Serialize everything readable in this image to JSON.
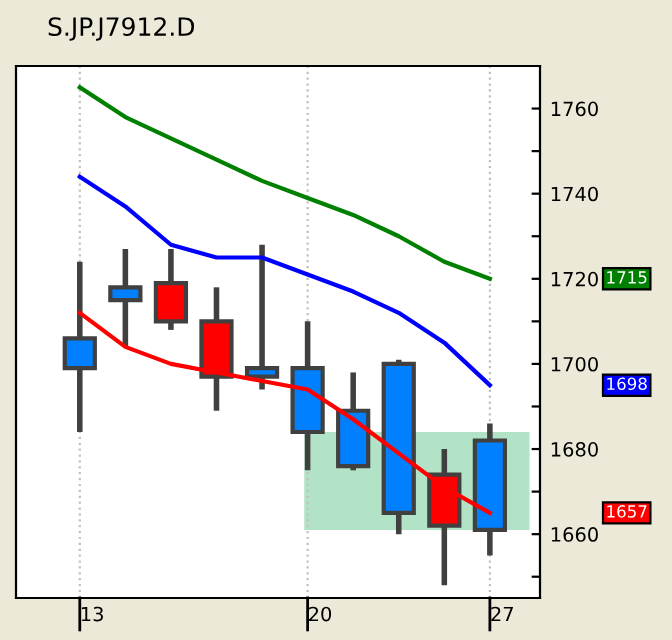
{
  "chart_data": {
    "type": "candlestick",
    "title": "S.JP.J7912.D",
    "categories": [
      "13",
      null,
      null,
      null,
      null,
      "20",
      null,
      null,
      null,
      "27"
    ],
    "ohlc": [
      [
        1699,
        1724,
        1684,
        1706
      ],
      [
        1715,
        1727,
        1704,
        1718
      ],
      [
        1719,
        1727,
        1708,
        1710
      ],
      [
        1710,
        1718,
        1689,
        1697
      ],
      [
        1697,
        1728,
        1694,
        1699
      ],
      [
        1684,
        1710,
        1675,
        1699
      ],
      [
        1676,
        1698,
        1675,
        1689
      ],
      [
        1665,
        1701,
        1660,
        1700
      ],
      [
        1674,
        1680,
        1648,
        1662
      ],
      [
        1661,
        1686,
        1655,
        1682
      ]
    ],
    "colors": [
      "#0080ff",
      "#0080ff",
      "#ff0000",
      "#ff0000",
      "#0080ff",
      "#0080ff",
      "#0080ff",
      "#0080ff",
      "#ff0000",
      "#0080ff"
    ],
    "series": [
      {
        "type": "line",
        "color": "#008000",
        "values": [
          1765,
          1758,
          1753,
          1748,
          1743,
          1739,
          1735,
          1730,
          1724,
          1720
        ]
      },
      {
        "type": "line",
        "color": "#0000ff",
        "values": [
          1744,
          1737,
          1728,
          1725,
          1725,
          1721,
          1717,
          1712,
          1705,
          1695
        ]
      },
      {
        "type": "line",
        "color": "#ff0000",
        "values": [
          1712,
          1704,
          1700,
          1698,
          1696,
          1694,
          1687,
          1679,
          1671,
          1665
        ]
      }
    ],
    "annotations": [
      "1715",
      "1698",
      "1657"
    ],
    "bands": [
      {
        "axis": "y",
        "from": 1661,
        "to": 1684,
        "color": "#99d9b4"
      }
    ],
    "ylim": [
      1645,
      1770
    ],
    "yticks": [
      {
        "value": 1650,
        "label": null
      },
      1660,
      {
        "value": 1670,
        "label": null
      },
      1680,
      {
        "value": 1690,
        "label": null
      },
      1700,
      {
        "value": 1710,
        "label": null
      },
      1720,
      {
        "value": 1730,
        "label": null
      },
      1740,
      {
        "value": 1750,
        "label": null
      },
      1760
    ],
    "grid": "x",
    "legend": false
  }
}
